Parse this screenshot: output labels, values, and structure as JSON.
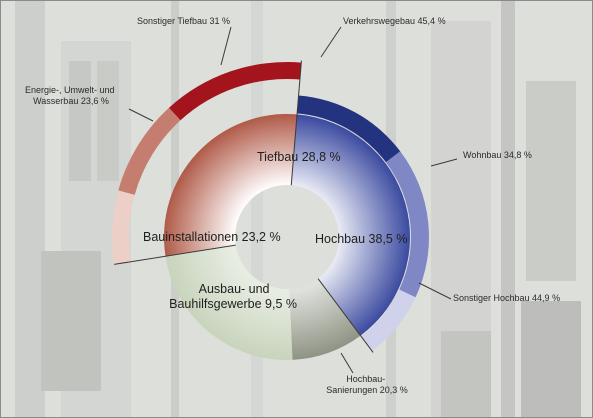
{
  "chart_data": {
    "type": "pie",
    "title": "",
    "inner": [
      {
        "label": "Tiefbau 28,8 %",
        "value": 28.8,
        "color": "#b05a48"
      },
      {
        "label": "Hochbau 38,5 %",
        "value": 38.5,
        "color": "#3b4aa0"
      },
      {
        "label": "Ausbau- und Bauhilfsgewerbe 9,5 %",
        "lines": [
          "Ausbau- und",
          "Bauhilfsgewerbe 9,5 %"
        ],
        "value": 9.5,
        "color": "#8e9484"
      },
      {
        "label": "Bauinstallationen 23,2 %",
        "value": 23.2,
        "color": "#c8d4bc"
      }
    ],
    "outer_tiefbau": [
      {
        "label": "Energie-, Umwelt- und Wasserbau 23,6 %",
        "lines": [
          "Energie-, Umwelt- und",
          "Wasserbau 23,6 %"
        ],
        "value": 23.6,
        "color": "#eccfc6"
      },
      {
        "label": "Sonstiger Tiefbau 31 %",
        "value": 31,
        "color": "#c47d6e"
      },
      {
        "label": "Verkehrswegebau 45,4 %",
        "value": 45.4,
        "color": "#a3141d"
      }
    ],
    "outer_hochbau": [
      {
        "label": "Wohnbau 34,8 %",
        "value": 34.8,
        "color": "#24337f"
      },
      {
        "label": "Sonstiger Hochbau 44,9 %",
        "value": 44.9,
        "color": "#7f87c4"
      },
      {
        "label": "Hochbau-Sanierungen 20,3 %",
        "lines": [
          "Hochbau-",
          "Sanierungen 20,3 %"
        ],
        "value": 20.3,
        "color": "#cfd2ea"
      }
    ]
  }
}
